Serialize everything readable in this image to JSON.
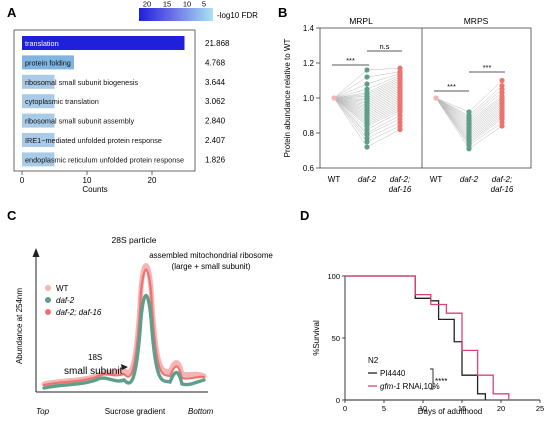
{
  "panels": {
    "a": "A",
    "b": "B",
    "c": "C",
    "d": "D"
  },
  "colors": {
    "bar_dark": "#1f1fdc",
    "bar_light": "#a9cbe8",
    "bar_mid": "#7fb5e0",
    "wt": "#f6b5b5",
    "daf2": "#5f9e8a",
    "daf16": "#ec7370",
    "black": "#222222",
    "magenta": "#e0407a"
  },
  "chart_data": [
    {
      "panel": "A",
      "type": "bar",
      "orientation": "horizontal",
      "xlabel": "Counts",
      "xlim": [
        0,
        28
      ],
      "xticks": [
        0,
        10,
        20
      ],
      "colorbar": {
        "label": "-log10 FDR",
        "ticks": [
          "20",
          "15",
          "10",
          "5"
        ]
      },
      "categories": [
        "translation",
        "protein folding",
        "ribosomal small subunit biogenesis",
        "cytoplasmic translation",
        "ribosomal small subunit assembly",
        "IRE1−mediated unfolded protein response",
        "endoplasmic reticulum unfolded protein response"
      ],
      "values": [
        25,
        8,
        5,
        5,
        5,
        5,
        5
      ],
      "fdr_labels": [
        "21.868",
        "4.768",
        "3.644",
        "3.062",
        "2.840",
        "2.407",
        "1.826"
      ]
    },
    {
      "panel": "B",
      "type": "scatter",
      "ylabel": "Protein abundance relative to WT",
      "ylim": [
        0.6,
        1.4
      ],
      "yticks": [
        "0.6",
        "0.8",
        "1.0",
        "1.2",
        "1.4"
      ],
      "facets": [
        "MRPL",
        "MRPS"
      ],
      "categories": [
        "WT",
        "daf-2",
        "daf-2;\ndaf-16"
      ],
      "cat_line1": [
        "WT",
        "daf-2",
        "daf-2;"
      ],
      "cat_line2": [
        "",
        "",
        "daf-16"
      ],
      "significance": {
        "mrpl_wt_daf2": "***",
        "mrpl_daf2_daf16": "n.s",
        "mrps_wt_daf2": "***",
        "mrps_daf2_daf16": "***"
      },
      "mrpl_daf2": [
        0.72,
        0.75,
        0.77,
        0.79,
        0.8,
        0.82,
        0.84,
        0.85,
        0.86,
        0.87,
        0.88,
        0.89,
        0.9,
        0.91,
        0.92,
        0.93,
        0.94,
        0.95,
        0.96,
        0.97,
        0.98,
        0.99,
        1.0,
        1.01,
        1.02,
        1.03,
        1.05,
        1.08,
        1.12,
        1.16
      ],
      "mrpl_daf16": [
        0.82,
        0.84,
        0.86,
        0.88,
        0.9,
        0.92,
        0.93,
        0.94,
        0.95,
        0.96,
        0.97,
        0.98,
        0.99,
        1.0,
        1.01,
        1.02,
        1.03,
        1.04,
        1.05,
        1.06,
        1.07,
        1.08,
        1.09,
        1.1,
        1.11,
        1.12,
        1.13,
        1.14,
        1.15,
        1.17
      ],
      "mrps_daf2": [
        0.71,
        0.73,
        0.74,
        0.75,
        0.76,
        0.77,
        0.78,
        0.79,
        0.8,
        0.81,
        0.82,
        0.83,
        0.84,
        0.85,
        0.86,
        0.87,
        0.88,
        0.89,
        0.9,
        0.92
      ],
      "mrps_daf16": [
        0.84,
        0.86,
        0.88,
        0.89,
        0.9,
        0.91,
        0.92,
        0.93,
        0.94,
        0.95,
        0.96,
        0.97,
        0.98,
        0.99,
        1.0,
        1.01,
        1.03,
        1.05,
        1.07,
        1.1
      ]
    },
    {
      "panel": "C",
      "type": "line",
      "ylabel": "Abundance at 254nm",
      "xlabel": "Sucrose gradient",
      "x_left": "Top",
      "x_right": "Bottom",
      "legend": [
        "WT",
        "daf-2",
        "daf-2; daf-16"
      ],
      "annotations": {
        "particle": "28S particle",
        "assembled_1": "assembled mitochondrial ribosome",
        "assembled_2": "(large + small subunit)",
        "s18": "18S",
        "small": "small subunit"
      }
    },
    {
      "panel": "D",
      "type": "line",
      "ylabel": "%Survival",
      "xlabel": "Days of adulthood",
      "xlim": [
        0,
        25
      ],
      "ylim": [
        0,
        100
      ],
      "xticks": [
        "0",
        "5",
        "10",
        "15",
        "20",
        "25"
      ],
      "yticks": [
        "0",
        "50",
        "100"
      ],
      "legend_title": "N2",
      "series": [
        {
          "name": "PI4440",
          "x": [
            0,
            7,
            9,
            11,
            12,
            14,
            15,
            17,
            18
          ],
          "y": [
            100,
            100,
            82,
            80,
            65,
            47,
            20,
            5,
            0
          ]
        },
        {
          "name": "gfm-1 RNAi,10%",
          "x": [
            0,
            7,
            9,
            11,
            13,
            15,
            17,
            19,
            21
          ],
          "y": [
            100,
            100,
            85,
            77,
            70,
            40,
            20,
            5,
            0
          ]
        }
      ],
      "legend_labels": {
        "s1": "PI4440",
        "s2_italic": "gfm-1",
        "s2_rest": " RNAi,10%"
      },
      "significance": "****"
    }
  ]
}
